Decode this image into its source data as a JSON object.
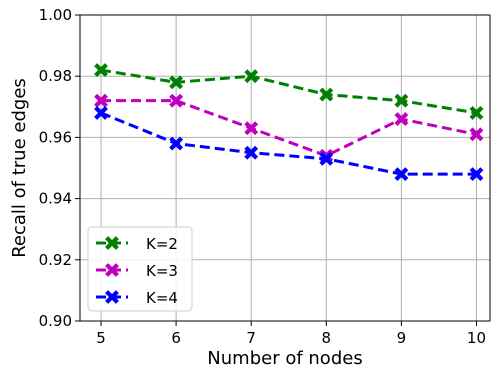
{
  "chart_data": {
    "type": "line",
    "title": "",
    "xlabel": "Number of nodes",
    "ylabel": "Recall of true edges",
    "x": [
      5,
      6,
      7,
      8,
      9,
      10
    ],
    "xticks": [
      "5",
      "6",
      "7",
      "8",
      "9",
      "10"
    ],
    "xlim": [
      4.72,
      10.18
    ],
    "ylim": [
      0.9,
      1.0
    ],
    "yticks": [
      "0.90",
      "0.92",
      "0.94",
      "0.96",
      "0.98",
      "1.00"
    ],
    "grid": true,
    "legend_position": "lower-left",
    "marker": "x",
    "line_style": "dashed",
    "series": [
      {
        "name": "K=2",
        "color": "#008000",
        "values": [
          0.982,
          0.978,
          0.98,
          0.974,
          0.972,
          0.968
        ]
      },
      {
        "name": "K=3",
        "color": "#bf00bf",
        "values": [
          0.972,
          0.972,
          0.963,
          0.954,
          0.966,
          0.961
        ]
      },
      {
        "name": "K=4",
        "color": "#0000ff",
        "values": [
          0.968,
          0.958,
          0.955,
          0.953,
          0.948,
          0.948
        ]
      }
    ]
  }
}
